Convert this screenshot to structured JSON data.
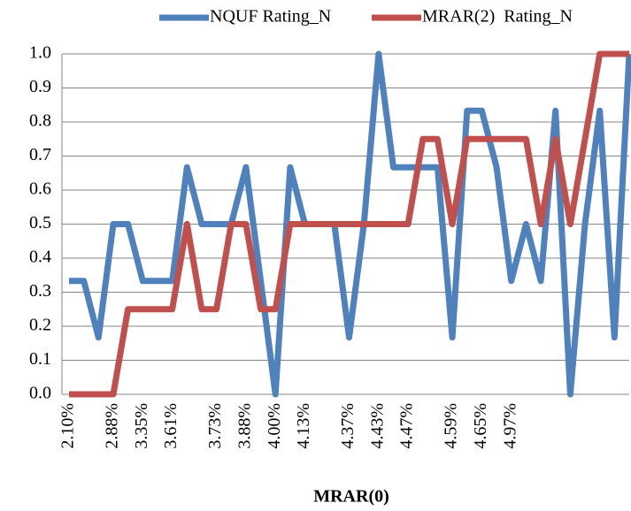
{
  "chart_data": {
    "type": "line",
    "x_label": "MRAR(0)",
    "categories": [
      "2.10%",
      null,
      null,
      "2.88%",
      null,
      "3.35%",
      null,
      "3.61%",
      null,
      null,
      "3.73%",
      null,
      "3.88%",
      null,
      "4.00%",
      null,
      "4.13%",
      null,
      null,
      "4.37%",
      null,
      "4.43%",
      null,
      "4.47%",
      null,
      null,
      "4.59%",
      null,
      "4.65%",
      null,
      "4.97%",
      null,
      null,
      null,
      null,
      null,
      null,
      null,
      null
    ],
    "series": [
      {
        "name": "NQUF Rating_N",
        "color": "#4f81bd",
        "values": [
          0.333,
          0.333,
          0.167,
          0.5,
          0.5,
          0.333,
          0.333,
          0.333,
          0.667,
          0.5,
          0.5,
          0.5,
          0.667,
          0.333,
          0,
          0.667,
          0.5,
          0.5,
          0.5,
          0.167,
          0.5,
          1,
          0.667,
          0.667,
          0.667,
          0.667,
          0.167,
          0.833,
          0.833,
          0.667,
          0.333,
          0.5,
          0.333,
          0.833,
          0,
          0.5,
          0.833,
          0.167,
          1
        ]
      },
      {
        "name": "MRAR(2)  Rating_N",
        "color": "#c0504d",
        "values": [
          0,
          0,
          0,
          0,
          0.25,
          0.25,
          0.25,
          0.25,
          0.5,
          0.25,
          0.25,
          0.5,
          0.5,
          0.25,
          0.25,
          0.5,
          0.5,
          0.5,
          0.5,
          0.5,
          0.5,
          0.5,
          0.5,
          0.5,
          0.75,
          0.75,
          0.5,
          0.75,
          0.75,
          0.75,
          0.75,
          0.75,
          0.5,
          0.75,
          0.5,
          0.75,
          1,
          1,
          1
        ]
      }
    ],
    "ylim": [
      0,
      1
    ],
    "yticks": [
      {
        "value": 0,
        "label": "0.0"
      },
      0.1,
      0.2,
      0.3,
      0.4,
      0.5,
      0.6,
      0.7,
      0.8,
      0.9,
      {
        "value": 1,
        "label": "1.0"
      }
    ],
    "grid": true,
    "legend": "top"
  }
}
